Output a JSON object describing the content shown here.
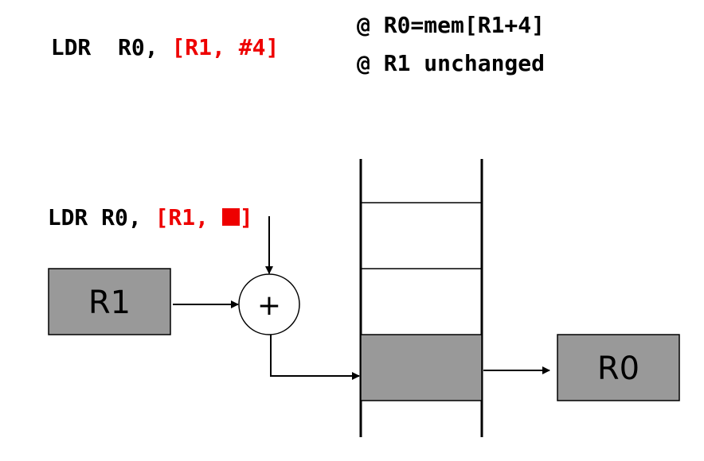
{
  "top_instruction": {
    "opcode": "LDR",
    "dest": "R0,",
    "operand": "[R1, #4]"
  },
  "comments": [
    "@ R0=mem[R1+4]",
    "@ R1 unchanged"
  ],
  "diagram_instruction": {
    "prefix": "LDR R0, ",
    "operand_open": "[R1, ",
    "operand_close": "]"
  },
  "diagram": {
    "base_register": "R1",
    "adder_symbol": "+",
    "dest_register": "R0"
  },
  "colors": {
    "highlight": "#ee0000",
    "register_fill": "#999999",
    "memory_selected": "#999999"
  }
}
